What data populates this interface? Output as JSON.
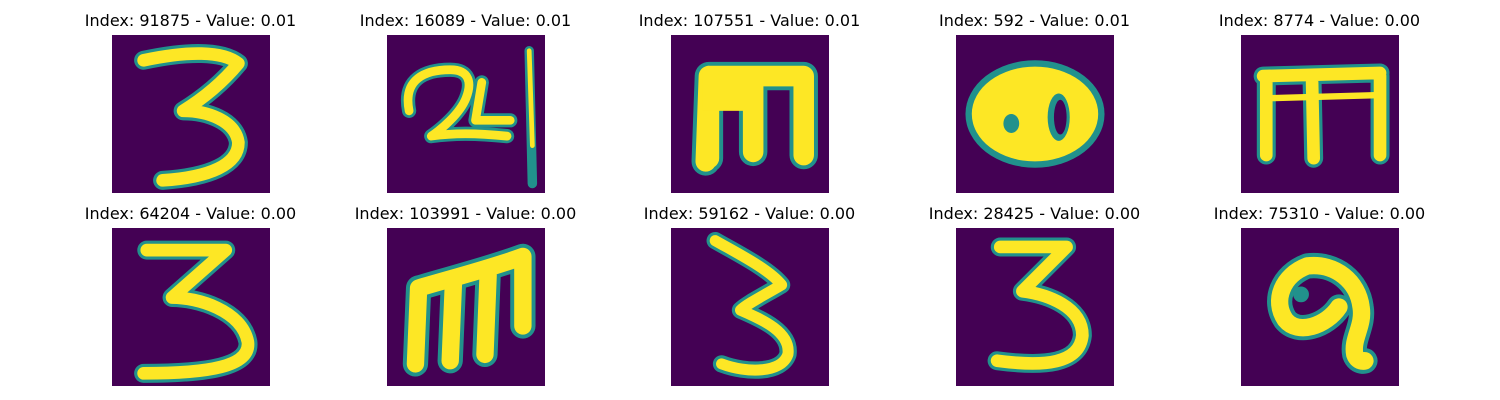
{
  "colors": {
    "background": "#440154",
    "mid": "#21918c",
    "bright": "#fde725"
  },
  "panels": [
    {
      "index": "91875",
      "value": "0.01",
      "title": "Index: 91875 - Value: 0.01",
      "glyph": "digit-three"
    },
    {
      "index": "16089",
      "value": "0.01",
      "title": "Index: 16089 - Value: 0.01",
      "glyph": "handwritten-24-character"
    },
    {
      "index": "107551",
      "value": "0.01",
      "title": "Index: 107551 - Value: 0.01",
      "glyph": "m-shaped-character"
    },
    {
      "index": "592",
      "value": "0.01",
      "title": "Index: 592 - Value: 0.01",
      "glyph": "blob-character"
    },
    {
      "index": "8774",
      "value": "0.00",
      "title": "Index: 8774 - Value: 0.00",
      "glyph": "m-shaped-character"
    },
    {
      "index": "64204",
      "value": "0.00",
      "title": "Index: 64204 - Value: 0.00",
      "glyph": "digit-three"
    },
    {
      "index": "103991",
      "value": "0.00",
      "title": "Index: 103991 - Value: 0.00",
      "glyph": "m-shaped-character"
    },
    {
      "index": "59162",
      "value": "0.00",
      "title": "Index: 59162 - Value: 0.00",
      "glyph": "digit-three"
    },
    {
      "index": "28425",
      "value": "0.00",
      "title": "Index: 28425 - Value: 0.00",
      "glyph": "digit-three"
    },
    {
      "index": "75310",
      "value": "0.00",
      "title": "Index: 75310 - Value: 0.00",
      "glyph": "loop-character"
    }
  ]
}
